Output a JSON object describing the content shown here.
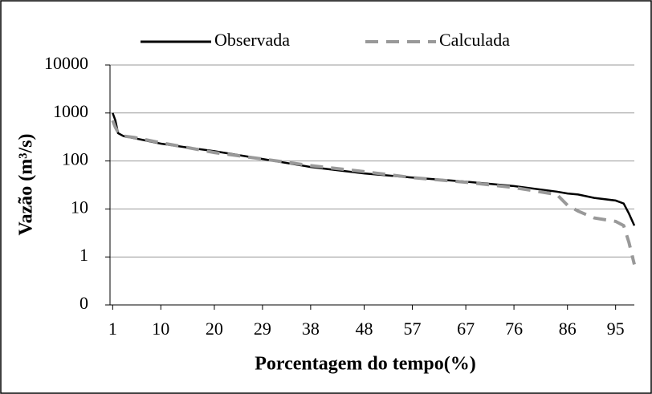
{
  "chart_data": {
    "type": "line",
    "log_y": true,
    "grid": true,
    "xlabel": "Porcentagem do tempo(%)",
    "ylabel": "Vazão (m³/s)",
    "x": [
      1,
      1.5,
      2,
      3,
      5,
      10,
      15,
      20,
      29,
      38,
      48,
      57,
      67,
      76,
      84,
      86,
      88,
      91,
      95,
      96.5,
      97.5,
      98.5
    ],
    "series": [
      {
        "name": "Observada",
        "color": "#000000",
        "dash": false,
        "values": [
          1000,
          700,
          380,
          330,
          300,
          230,
          190,
          160,
          110,
          75,
          55,
          45,
          37,
          30,
          23,
          21,
          20,
          17,
          15,
          13,
          8,
          4.5
        ]
      },
      {
        "name": "Calculada",
        "color": "#999999",
        "dash": true,
        "values": [
          700,
          500,
          400,
          330,
          310,
          240,
          190,
          150,
          110,
          80,
          60,
          45,
          36,
          28,
          20,
          12,
          9,
          6.5,
          5.5,
          4.5,
          2,
          0.7
        ]
      }
    ],
    "xlim": [
      0.5,
      98.5
    ],
    "xticks": [
      1,
      10,
      20,
      29,
      38,
      48,
      57,
      67,
      76,
      86,
      95
    ],
    "ylim": [
      0.1,
      10000
    ],
    "yticks": [
      {
        "value": 0.1,
        "label": "0"
      },
      1,
      10,
      100,
      1000,
      10000
    ],
    "legend": "top"
  }
}
